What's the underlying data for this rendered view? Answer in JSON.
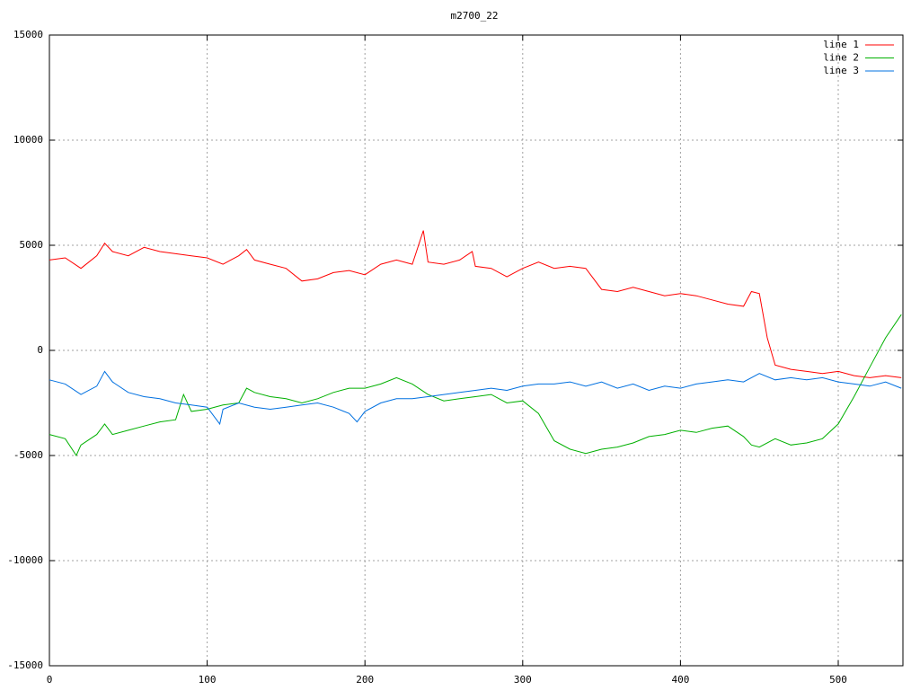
{
  "chart_data": {
    "type": "line",
    "title": "m2700_22",
    "xlim": [
      0,
      541
    ],
    "ylim": [
      -15000,
      15000
    ],
    "xticks": [
      0,
      100,
      200,
      300,
      400,
      500
    ],
    "yticks": [
      -15000,
      -10000,
      -5000,
      0,
      5000,
      10000,
      15000
    ],
    "grid": true,
    "legend": "top-right",
    "series": [
      {
        "name": "line 1",
        "color": "#ff0000",
        "x": [
          0,
          10,
          20,
          30,
          35,
          40,
          50,
          60,
          70,
          80,
          90,
          100,
          110,
          120,
          125,
          130,
          140,
          150,
          160,
          170,
          180,
          190,
          200,
          210,
          220,
          230,
          237,
          240,
          250,
          260,
          268,
          270,
          280,
          290,
          300,
          310,
          320,
          330,
          340,
          350,
          360,
          370,
          380,
          390,
          400,
          410,
          420,
          430,
          440,
          445,
          450,
          455,
          460,
          470,
          480,
          490,
          500,
          510,
          520,
          530,
          540
        ],
        "values": [
          4300,
          4400,
          3900,
          4500,
          5100,
          4700,
          4500,
          4900,
          4700,
          4600,
          4500,
          4400,
          4100,
          4500,
          4800,
          4300,
          4100,
          3900,
          3300,
          3400,
          3700,
          3800,
          3600,
          4100,
          4300,
          4100,
          5700,
          4200,
          4100,
          4300,
          4700,
          4000,
          3900,
          3500,
          3900,
          4200,
          3900,
          4000,
          3900,
          2900,
          2800,
          3000,
          2800,
          2600,
          2700,
          2600,
          2400,
          2200,
          2100,
          2800,
          2700,
          600,
          -700,
          -900,
          -1000,
          -1100,
          -1000,
          -1200,
          -1300,
          -1200,
          -1300
        ]
      },
      {
        "name": "line 2",
        "color": "#00b000",
        "x": [
          0,
          10,
          17,
          20,
          30,
          35,
          40,
          50,
          60,
          70,
          80,
          85,
          90,
          100,
          110,
          120,
          125,
          130,
          140,
          150,
          160,
          170,
          180,
          190,
          200,
          210,
          220,
          230,
          240,
          250,
          260,
          270,
          280,
          290,
          300,
          310,
          320,
          330,
          340,
          350,
          360,
          370,
          380,
          390,
          400,
          410,
          420,
          430,
          440,
          445,
          450,
          460,
          470,
          480,
          490,
          500,
          510,
          520,
          530,
          540
        ],
        "values": [
          -4000,
          -4200,
          -5000,
          -4500,
          -4000,
          -3500,
          -4000,
          -3800,
          -3600,
          -3400,
          -3300,
          -2100,
          -2900,
          -2800,
          -2600,
          -2500,
          -1800,
          -2000,
          -2200,
          -2300,
          -2500,
          -2300,
          -2000,
          -1800,
          -1800,
          -1600,
          -1300,
          -1600,
          -2100,
          -2400,
          -2300,
          -2200,
          -2100,
          -2500,
          -2400,
          -3000,
          -4300,
          -4700,
          -4900,
          -4700,
          -4600,
          -4400,
          -4100,
          -4000,
          -3800,
          -3900,
          -3700,
          -3600,
          -4100,
          -4500,
          -4600,
          -4200,
          -4500,
          -4400,
          -4200,
          -3500,
          -2200,
          -800,
          600,
          1700
        ]
      },
      {
        "name": "line 3",
        "color": "#0070e0",
        "x": [
          0,
          10,
          20,
          30,
          35,
          40,
          50,
          60,
          70,
          80,
          90,
          100,
          108,
          110,
          120,
          130,
          140,
          150,
          160,
          170,
          180,
          190,
          195,
          200,
          210,
          220,
          230,
          240,
          250,
          260,
          270,
          280,
          290,
          300,
          310,
          320,
          330,
          340,
          350,
          360,
          370,
          380,
          390,
          400,
          410,
          420,
          430,
          440,
          450,
          460,
          470,
          480,
          490,
          500,
          510,
          520,
          530,
          540
        ],
        "values": [
          -1400,
          -1600,
          -2100,
          -1700,
          -1000,
          -1500,
          -2000,
          -2200,
          -2300,
          -2500,
          -2600,
          -2700,
          -3500,
          -2800,
          -2500,
          -2700,
          -2800,
          -2700,
          -2600,
          -2500,
          -2700,
          -3000,
          -3400,
          -2900,
          -2500,
          -2300,
          -2300,
          -2200,
          -2100,
          -2000,
          -1900,
          -1800,
          -1900,
          -1700,
          -1600,
          -1600,
          -1500,
          -1700,
          -1500,
          -1800,
          -1600,
          -1900,
          -1700,
          -1800,
          -1600,
          -1500,
          -1400,
          -1500,
          -1100,
          -1400,
          -1300,
          -1400,
          -1300,
          -1500,
          -1600,
          -1700,
          -1500,
          -1800
        ]
      }
    ]
  }
}
